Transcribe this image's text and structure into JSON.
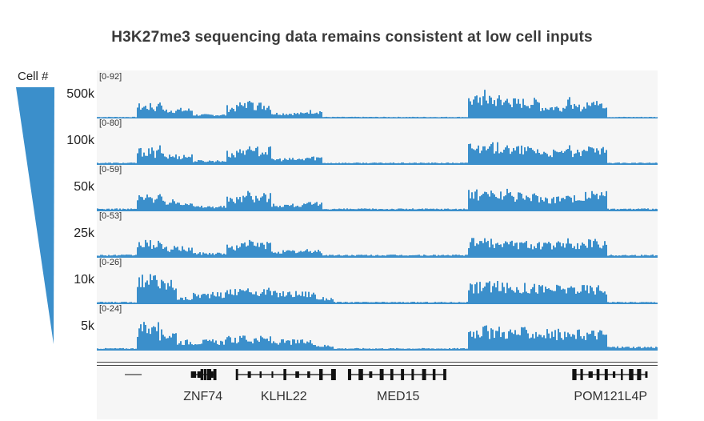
{
  "chart_data": {
    "type": "area",
    "title": "H3K27me3 sequencing data remains consistent at low cell inputs",
    "row_axis_label": "Cell #",
    "color": "#3b8fcb",
    "tracks": [
      {
        "cells": "500k",
        "range": "[0-92]",
        "max": 92,
        "segments": [
          [
            0.0,
            0.07,
            2
          ],
          [
            0.07,
            0.1,
            32
          ],
          [
            0.1,
            0.17,
            22
          ],
          [
            0.17,
            0.23,
            8
          ],
          [
            0.23,
            0.25,
            28
          ],
          [
            0.25,
            0.31,
            36
          ],
          [
            0.31,
            0.37,
            12
          ],
          [
            0.37,
            0.4,
            18
          ],
          [
            0.4,
            0.66,
            2
          ],
          [
            0.66,
            0.72,
            50
          ],
          [
            0.72,
            0.79,
            44
          ],
          [
            0.79,
            0.87,
            30
          ],
          [
            0.87,
            0.91,
            42
          ],
          [
            0.91,
            1.0,
            2
          ]
        ],
        "peaks": [
          [
            0.11,
            60
          ],
          [
            0.27,
            56
          ],
          [
            0.69,
            80
          ],
          [
            0.73,
            62
          ],
          [
            0.84,
            66
          ],
          [
            0.89,
            58
          ]
        ]
      },
      {
        "cells": "100k",
        "range": "[0-80]",
        "max": 80,
        "segments": [
          [
            0.0,
            0.07,
            3
          ],
          [
            0.07,
            0.1,
            32
          ],
          [
            0.1,
            0.17,
            20
          ],
          [
            0.17,
            0.23,
            8
          ],
          [
            0.23,
            0.25,
            26
          ],
          [
            0.25,
            0.31,
            34
          ],
          [
            0.31,
            0.37,
            12
          ],
          [
            0.37,
            0.4,
            16
          ],
          [
            0.4,
            0.66,
            3
          ],
          [
            0.66,
            0.72,
            42
          ],
          [
            0.72,
            0.79,
            36
          ],
          [
            0.79,
            0.87,
            28
          ],
          [
            0.87,
            0.91,
            36
          ],
          [
            0.91,
            1.0,
            3
          ]
        ],
        "peaks": [
          [
            0.11,
            52
          ],
          [
            0.27,
            56
          ],
          [
            0.69,
            60
          ],
          [
            0.73,
            50
          ],
          [
            0.84,
            52
          ],
          [
            0.89,
            48
          ]
        ]
      },
      {
        "cells": "50k",
        "range": "[0-59]",
        "max": 59,
        "segments": [
          [
            0.0,
            0.07,
            3
          ],
          [
            0.07,
            0.1,
            24
          ],
          [
            0.1,
            0.17,
            16
          ],
          [
            0.17,
            0.23,
            7
          ],
          [
            0.23,
            0.25,
            20
          ],
          [
            0.25,
            0.31,
            26
          ],
          [
            0.31,
            0.37,
            10
          ],
          [
            0.37,
            0.4,
            12
          ],
          [
            0.4,
            0.66,
            3
          ],
          [
            0.66,
            0.72,
            30
          ],
          [
            0.72,
            0.79,
            26
          ],
          [
            0.79,
            0.87,
            22
          ],
          [
            0.87,
            0.91,
            28
          ],
          [
            0.91,
            1.0,
            3
          ]
        ],
        "peaks": [
          [
            0.11,
            38
          ],
          [
            0.27,
            46
          ],
          [
            0.69,
            44
          ],
          [
            0.73,
            40
          ],
          [
            0.84,
            40
          ],
          [
            0.89,
            38
          ]
        ]
      },
      {
        "cells": "25k",
        "range": "[0-53]",
        "max": 53,
        "segments": [
          [
            0.0,
            0.07,
            3
          ],
          [
            0.07,
            0.1,
            22
          ],
          [
            0.1,
            0.17,
            14
          ],
          [
            0.17,
            0.23,
            6
          ],
          [
            0.23,
            0.25,
            16
          ],
          [
            0.25,
            0.31,
            20
          ],
          [
            0.31,
            0.37,
            9
          ],
          [
            0.37,
            0.4,
            10
          ],
          [
            0.4,
            0.66,
            3
          ],
          [
            0.66,
            0.72,
            24
          ],
          [
            0.72,
            0.79,
            22
          ],
          [
            0.79,
            0.87,
            20
          ],
          [
            0.87,
            0.91,
            24
          ],
          [
            0.91,
            1.0,
            3
          ]
        ],
        "peaks": [
          [
            0.11,
            34
          ],
          [
            0.27,
            30
          ],
          [
            0.69,
            34
          ],
          [
            0.73,
            32
          ],
          [
            0.84,
            34
          ],
          [
            0.89,
            32
          ]
        ]
      },
      {
        "cells": "10k",
        "range": "[0-26]",
        "max": 26,
        "segments": [
          [
            0.0,
            0.07,
            1
          ],
          [
            0.07,
            0.11,
            20
          ],
          [
            0.11,
            0.14,
            16
          ],
          [
            0.14,
            0.17,
            4
          ],
          [
            0.17,
            0.23,
            7
          ],
          [
            0.23,
            0.31,
            10
          ],
          [
            0.31,
            0.39,
            8
          ],
          [
            0.39,
            0.42,
            4
          ],
          [
            0.42,
            0.66,
            1
          ],
          [
            0.66,
            0.72,
            14
          ],
          [
            0.72,
            0.79,
            13
          ],
          [
            0.79,
            0.87,
            12
          ],
          [
            0.87,
            0.91,
            12
          ],
          [
            0.91,
            1.0,
            1
          ]
        ],
        "peaks": [
          [
            0.1,
            24
          ],
          [
            0.26,
            14
          ],
          [
            0.69,
            15
          ],
          [
            0.84,
            14
          ]
        ]
      },
      {
        "cells": "5k",
        "range": "[0-24]",
        "max": 24,
        "segments": [
          [
            0.0,
            0.07,
            1
          ],
          [
            0.07,
            0.11,
            16
          ],
          [
            0.11,
            0.14,
            12
          ],
          [
            0.14,
            0.17,
            6
          ],
          [
            0.17,
            0.23,
            6
          ],
          [
            0.23,
            0.31,
            8
          ],
          [
            0.31,
            0.39,
            6
          ],
          [
            0.39,
            0.42,
            3
          ],
          [
            0.42,
            0.66,
            1
          ],
          [
            0.66,
            0.72,
            14
          ],
          [
            0.72,
            0.79,
            13
          ],
          [
            0.79,
            0.87,
            12
          ],
          [
            0.87,
            0.91,
            12
          ],
          [
            0.91,
            1.0,
            2
          ]
        ],
        "peaks": [
          [
            0.1,
            22
          ],
          [
            0.26,
            14
          ],
          [
            0.69,
            16
          ],
          [
            0.84,
            14
          ]
        ]
      }
    ],
    "genes": [
      {
        "name": "ZNF74",
        "start": 0.17,
        "end": 0.21,
        "strand": "+"
      },
      {
        "name": "KLHL22",
        "start": 0.25,
        "end": 0.42,
        "strand": "-"
      },
      {
        "name": "MED15",
        "start": 0.45,
        "end": 0.62,
        "strand": "+"
      },
      {
        "name": "POM121L4P",
        "start": 0.85,
        "end": 0.98,
        "strand": "+"
      }
    ]
  }
}
